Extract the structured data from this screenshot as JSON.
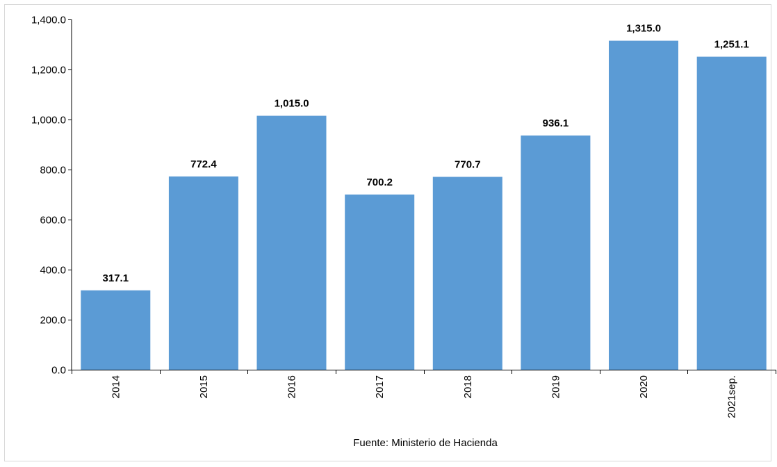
{
  "chart_data": {
    "type": "bar",
    "title": "",
    "xlabel": "",
    "ylabel": "",
    "categories": [
      "2014",
      "2015",
      "2016",
      "2017",
      "2018",
      "2019",
      "2020",
      "2021sep."
    ],
    "values": [
      317.1,
      772.4,
      1015.0,
      700.2,
      770.7,
      936.1,
      1315.0,
      1251.1
    ],
    "value_labels": [
      "317.1",
      "772.4",
      "1,015.0",
      "700.2",
      "770.7",
      "936.1",
      "1,315.0",
      "1,251.1"
    ],
    "ylim": [
      0,
      1400
    ],
    "yticks": [
      0,
      200,
      400,
      600,
      800,
      1000,
      1200,
      1400
    ],
    "ytick_labels": [
      "0.0",
      "200.0",
      "400.0",
      "600.0",
      "800.0",
      "1,000.0",
      "1,200.0",
      "1,400.0"
    ],
    "bar_color": "#5b9bd5",
    "grid": false,
    "legend": "none",
    "source_note": "Fuente:  Ministerio de Hacienda"
  }
}
